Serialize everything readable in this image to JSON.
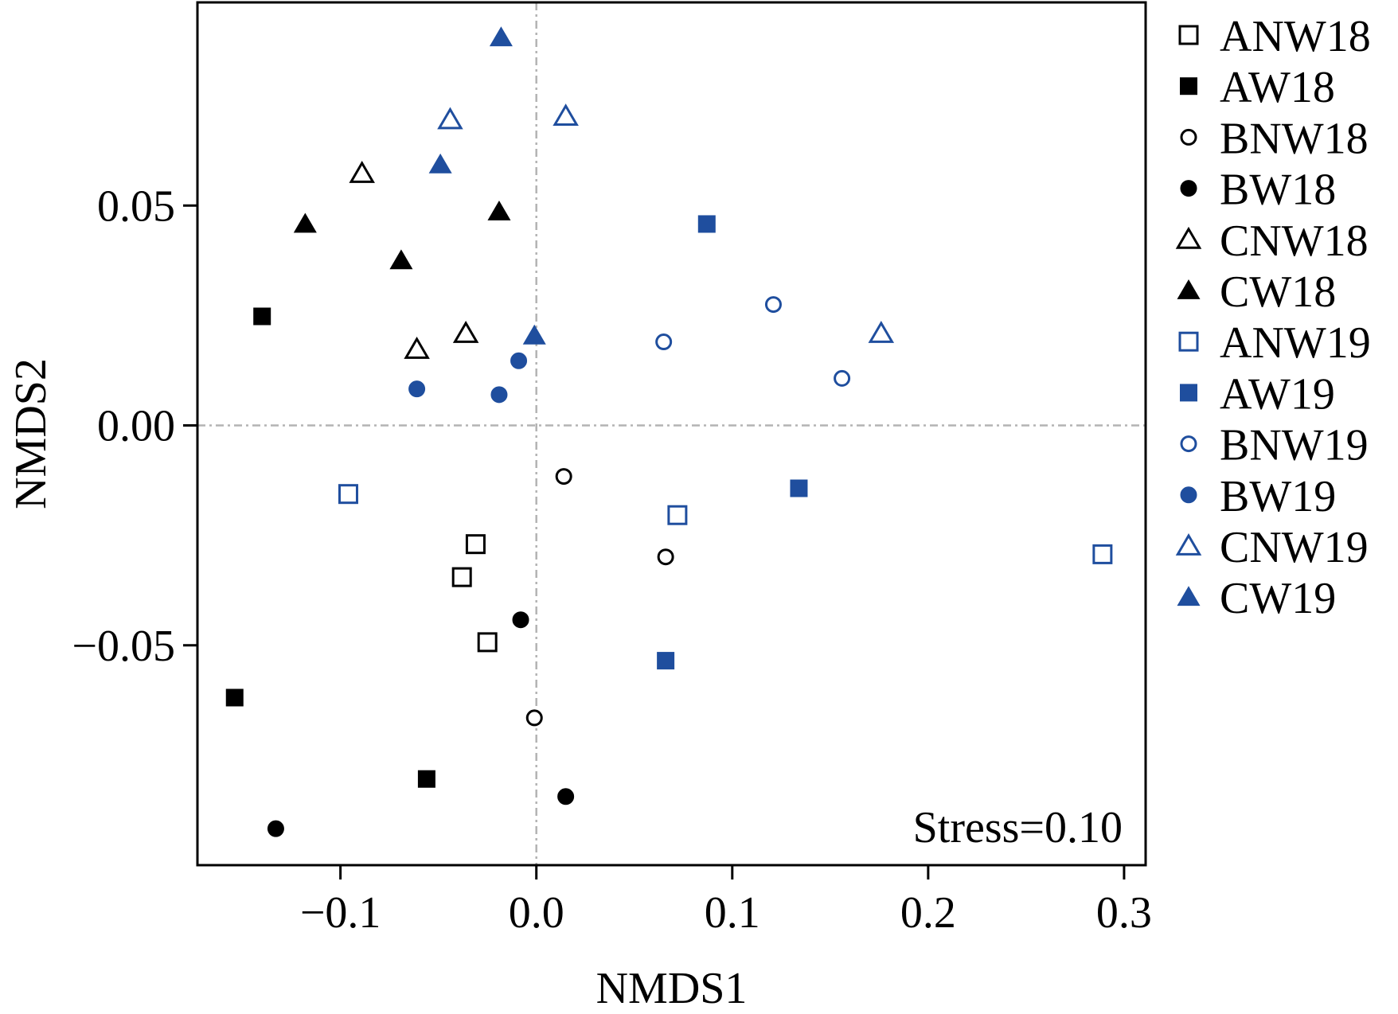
{
  "chart_data": {
    "type": "scatter",
    "xlabel": "NMDS1",
    "ylabel": "NMDS2",
    "xlim": [
      -0.173,
      0.311
    ],
    "ylim": [
      -0.1,
      0.0962
    ],
    "x_ticks": [
      -0.1,
      0.0,
      0.1,
      0.2,
      0.3
    ],
    "x_tick_labels": [
      "−0.1",
      "0.0",
      "0.1",
      "0.2",
      "0.3"
    ],
    "y_ticks": [
      -0.05,
      0.0,
      0.05
    ],
    "y_tick_labels": [
      "−0.05",
      "0.00",
      "0.05"
    ],
    "reference_lines": {
      "x": 0,
      "y": 0,
      "style": "dash-dot",
      "color": "#b3b3b3"
    },
    "grid": false,
    "legend_position": "right-outside",
    "annotation": "Stress=0.10",
    "annotation_position": "bottom-right",
    "colors": {
      "2018": "#000000",
      "2019": "#1f4e9e"
    },
    "series": [
      {
        "name": "ANW18",
        "marker": "square",
        "filled": false,
        "color": "#000000",
        "points": [
          [
            -0.031,
            -0.027
          ],
          [
            -0.038,
            -0.0345
          ],
          [
            -0.025,
            -0.0493
          ]
        ]
      },
      {
        "name": "AW18",
        "marker": "square",
        "filled": true,
        "color": "#000000",
        "points": [
          [
            -0.14,
            0.0248
          ],
          [
            -0.154,
            -0.0619
          ],
          [
            -0.056,
            -0.0804
          ]
        ]
      },
      {
        "name": "BNW18",
        "marker": "circle",
        "filled": false,
        "color": "#000000",
        "points": [
          [
            0.014,
            -0.0116
          ],
          [
            0.066,
            -0.0299
          ],
          [
            -0.001,
            -0.0665
          ]
        ]
      },
      {
        "name": "BW18",
        "marker": "circle",
        "filled": true,
        "color": "#000000",
        "points": [
          [
            -0.008,
            -0.0442
          ],
          [
            0.015,
            -0.0844
          ],
          [
            -0.133,
            -0.0917
          ]
        ]
      },
      {
        "name": "CNW18",
        "marker": "triangle",
        "filled": false,
        "color": "#000000",
        "points": [
          [
            -0.089,
            0.0573
          ],
          [
            -0.061,
            0.0173
          ],
          [
            -0.036,
            0.0209
          ]
        ]
      },
      {
        "name": "CW18",
        "marker": "triangle",
        "filled": true,
        "color": "#000000",
        "points": [
          [
            -0.118,
            0.0458
          ],
          [
            -0.069,
            0.0375
          ],
          [
            -0.019,
            0.0486
          ]
        ]
      },
      {
        "name": "ANW19",
        "marker": "square",
        "filled": false,
        "color": "#1f4e9e",
        "points": [
          [
            -0.096,
            -0.0156
          ],
          [
            0.072,
            -0.0204
          ],
          [
            0.289,
            -0.0293
          ]
        ]
      },
      {
        "name": "AW19",
        "marker": "square",
        "filled": true,
        "color": "#1f4e9e",
        "points": [
          [
            0.087,
            0.0458
          ],
          [
            0.134,
            -0.0143
          ],
          [
            0.066,
            -0.0535
          ]
        ]
      },
      {
        "name": "BNW19",
        "marker": "circle",
        "filled": false,
        "color": "#1f4e9e",
        "points": [
          [
            0.121,
            0.0275
          ],
          [
            0.065,
            0.019
          ],
          [
            0.156,
            0.0107
          ]
        ]
      },
      {
        "name": "BW19",
        "marker": "circle",
        "filled": true,
        "color": "#1f4e9e",
        "points": [
          [
            -0.009,
            0.0147
          ],
          [
            -0.061,
            0.0083
          ],
          [
            -0.019,
            0.007
          ]
        ]
      },
      {
        "name": "CNW19",
        "marker": "triangle",
        "filled": false,
        "color": "#1f4e9e",
        "points": [
          [
            -0.044,
            0.0695
          ],
          [
            0.015,
            0.0703
          ],
          [
            0.176,
            0.0209
          ]
        ]
      },
      {
        "name": "CW19",
        "marker": "triangle",
        "filled": true,
        "color": "#1f4e9e",
        "points": [
          [
            -0.018,
            0.0882
          ],
          [
            -0.049,
            0.0593
          ],
          [
            -0.001,
            0.0204
          ]
        ]
      }
    ]
  }
}
